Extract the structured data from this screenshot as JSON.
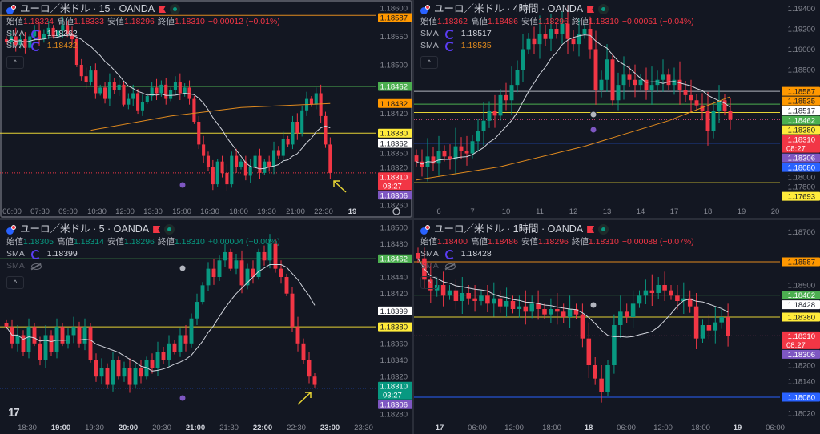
{
  "colors": {
    "up": "#089981",
    "down": "#f23645",
    "background": "#131722",
    "sma_fast": "#d1d4dc",
    "sma_slow": "#e08a1e"
  },
  "panels": [
    {
      "title": "ユーロ／米ドル · 15 · OANDA",
      "ohlc": {
        "o_label": "始値",
        "o": "1.18324",
        "h_label": "高値",
        "h": "1.18333",
        "l_label": "安値",
        "l": "1.18296",
        "c_label": "終値",
        "c": "1.18310",
        "change": "−0.00012 (−0.01%)",
        "tone": "down"
      },
      "sma": [
        {
          "label": "SMA",
          "value": "1.18362",
          "color": "#d1d4dc",
          "visible": true
        },
        {
          "label": "SMA",
          "value": "1.18432",
          "color": "#e08a1e",
          "visible": true
        }
      ],
      "price_axis": [
        "1.18600",
        "1.18550",
        "1.18500",
        "1.18420",
        "1.18350",
        "1.18320",
        "1.18260"
      ],
      "time_axis": [
        {
          "t": "06:00"
        },
        {
          "t": "07:30"
        },
        {
          "t": "09:00"
        },
        {
          "t": "10:30"
        },
        {
          "t": "12:00"
        },
        {
          "t": "13:30"
        },
        {
          "t": "15:00"
        },
        {
          "t": "16:30"
        },
        {
          "t": "18:00"
        },
        {
          "t": "19:30"
        },
        {
          "t": "21:00"
        },
        {
          "t": "22:30"
        },
        {
          "t": "19",
          "bold": true
        }
      ],
      "levels": [
        {
          "price": 1.18587,
          "color": "#e08a1e",
          "style": "solid"
        },
        {
          "price": 1.18462,
          "color": "#4caf50",
          "style": "solid"
        },
        {
          "price": 1.1838,
          "color": "#e6d335",
          "style": "solid"
        },
        {
          "price": 1.1831,
          "color": "#f23645",
          "style": "dotted"
        }
      ],
      "tags": [
        {
          "text": "1.18587",
          "bg": "#ff9800",
          "fg": "#131722"
        },
        {
          "text": "1.18462",
          "bg": "#4caf50",
          "fg": "#ffffff"
        },
        {
          "text": "1.18432",
          "bg": "#ff9800",
          "fg": "#131722"
        },
        {
          "text": "1.18380",
          "bg": "#ffeb3b",
          "fg": "#131722"
        },
        {
          "text": "1.18362",
          "bg": "#ffffff",
          "fg": "#131722"
        },
        {
          "text": "1.18310",
          "timer": "08:27",
          "bg": "#f23645",
          "fg": "#ffffff"
        },
        {
          "text": "1.18306",
          "bg": "#7e57c2",
          "fg": "#ffffff"
        }
      ],
      "closes": [
        1.1854,
        1.1855,
        1.18535,
        1.18545,
        1.1853,
        1.1855,
        1.1856,
        1.18545,
        1.18555,
        1.18565,
        1.1855,
        1.1856,
        1.1857,
        1.18555,
        1.18545,
        1.185,
        1.1848,
        1.1847,
        1.1849,
        1.1845,
        1.1846,
        1.1844,
        1.1847,
        1.18455,
        1.18465,
        1.1843,
        1.1844,
        1.1845,
        1.1842,
        1.18435,
        1.18445,
        1.1846,
        1.1845,
        1.18465,
        1.1844,
        1.18455,
        1.1847,
        1.1845,
        1.1846,
        1.1844,
        1.184,
        1.1836,
        1.1834,
        1.1832,
        1.1829,
        1.1833,
        1.1831,
        1.1829,
        1.1834,
        1.1832,
        1.1833,
        1.18305,
        1.1832,
        1.1834,
        1.1831,
        1.1833,
        1.1832,
        1.1835,
        1.1834,
        1.1837,
        1.1836,
        1.184,
        1.1838,
        1.1842,
        1.1844,
        1.1843,
        1.1845,
        1.1841,
        1.1836,
        1.1831
      ],
      "slow_sma_points": [
        [
          18,
          1.18385
        ],
        [
          35,
          1.1841
        ],
        [
          50,
          1.18425
        ],
        [
          69,
          1.18432
        ]
      ],
      "active": true
    },
    {
      "title": "ユーロ／米ドル · 4時間 · OANDA",
      "ohlc": {
        "o_label": "始値",
        "o": "1.18362",
        "h_label": "高値",
        "h": "1.18486",
        "l_label": "安値",
        "l": "1.18296",
        "c_label": "終値",
        "c": "1.18310",
        "change": "−0.00051 (−0.04%)",
        "tone": "down"
      },
      "sma": [
        {
          "label": "SMA",
          "value": "1.18517",
          "color": "#d1d4dc",
          "visible": true
        },
        {
          "label": "SMA",
          "value": "1.18535",
          "color": "#e08a1e",
          "visible": true
        }
      ],
      "price_axis": [
        "1.19400",
        "1.19200",
        "1.19000",
        "1.18800",
        "1.18000",
        "1.17800"
      ],
      "time_axis": [
        {
          "t": "6"
        },
        {
          "t": "7"
        },
        {
          "t": "10"
        },
        {
          "t": "11"
        },
        {
          "t": "12"
        },
        {
          "t": "13"
        },
        {
          "t": "14"
        },
        {
          "t": "17"
        },
        {
          "t": "18"
        },
        {
          "t": "19"
        },
        {
          "t": "20"
        }
      ],
      "levels": [
        {
          "price": 1.18587,
          "color": "#b2b5be",
          "style": "solid"
        },
        {
          "price": 1.18462,
          "color": "#4caf50",
          "style": "solid"
        },
        {
          "price": 1.1838,
          "color": "#e6d335",
          "style": "solid"
        },
        {
          "price": 1.1831,
          "color": "#c04070",
          "style": "dotted"
        },
        {
          "price": 1.1808,
          "color": "#2962ff",
          "style": "solid"
        },
        {
          "price": 1.17693,
          "color": "#e6d335",
          "style": "solid"
        }
      ],
      "tags": [
        {
          "text": "1.18587",
          "bg": "#ff9800",
          "fg": "#131722"
        },
        {
          "text": "1.18535",
          "bg": "#ff9800",
          "fg": "#131722"
        },
        {
          "text": "1.18517",
          "bg": "#ffffff",
          "fg": "#131722"
        },
        {
          "text": "1.18462",
          "bg": "#4caf50",
          "fg": "#ffffff"
        },
        {
          "text": "1.18380",
          "bg": "#ffeb3b",
          "fg": "#131722"
        },
        {
          "text": "1.18310",
          "timer": "08:27",
          "bg": "#f23645",
          "fg": "#ffffff"
        },
        {
          "text": "1.18306",
          "bg": "#7e57c2",
          "fg": "#ffffff"
        },
        {
          "text": "1.18080",
          "bg": "#2962ff",
          "fg": "#ffffff"
        },
        {
          "text": "1.17693",
          "bg": "#ffeb3b",
          "fg": "#131722"
        }
      ],
      "closes": [
        1.179,
        1.1785,
        1.1795,
        1.1788,
        1.18,
        1.1795,
        1.1792,
        1.1805,
        1.18,
        1.1798,
        1.181,
        1.182,
        1.183,
        1.184,
        1.1835,
        1.1855,
        1.185,
        1.1865,
        1.188,
        1.19,
        1.191,
        1.1905,
        1.1915,
        1.191,
        1.192,
        1.1915,
        1.1925,
        1.191,
        1.1905,
        1.1915,
        1.192,
        1.19,
        1.186,
        1.187,
        1.189,
        1.185,
        1.1865,
        1.1875,
        1.187,
        1.1865,
        1.187,
        1.186,
        1.1865,
        1.187,
        1.1875,
        1.1865,
        1.187,
        1.186,
        1.1855,
        1.185,
        1.1845,
        1.184,
        1.182,
        1.184,
        1.185,
        1.184,
        1.1831
      ],
      "slow_sma_points": [
        [
          0,
          1.1772
        ],
        [
          15,
          1.1785
        ],
        [
          30,
          1.1805
        ],
        [
          45,
          1.183
        ],
        [
          56,
          1.18535
        ]
      ],
      "active": false
    },
    {
      "title": "ユーロ／米ドル · 5 · OANDA",
      "ohlc": {
        "o_label": "始値",
        "o": "1.18305",
        "h_label": "高値",
        "h": "1.18314",
        "l_label": "安値",
        "l": "1.18296",
        "c_label": "終値",
        "c": "1.18310",
        "change": "+0.00004 (+0.00%)",
        "tone": "up"
      },
      "sma": [
        {
          "label": "SMA",
          "value": "1.18399",
          "color": "#d1d4dc",
          "visible": true
        },
        {
          "label": "SMA",
          "value": "",
          "color": "#50535e",
          "visible": false
        }
      ],
      "price_axis": [
        "1.18500",
        "1.18480",
        "1.18440",
        "1.18420",
        "1.18360",
        "1.18340",
        "1.18320",
        "1.18280"
      ],
      "time_axis": [
        {
          "t": "18:30"
        },
        {
          "t": "19:00",
          "bold": true
        },
        {
          "t": "19:30"
        },
        {
          "t": "20:00",
          "bold": true
        },
        {
          "t": "20:30"
        },
        {
          "t": "21:00",
          "bold": true
        },
        {
          "t": "21:30"
        },
        {
          "t": "22:00",
          "bold": true
        },
        {
          "t": "22:30"
        },
        {
          "t": "23:00",
          "bold": true
        },
        {
          "t": "23:30"
        }
      ],
      "levels": [
        {
          "price": 1.18462,
          "color": "#4caf50",
          "style": "solid"
        },
        {
          "price": 1.1838,
          "color": "#e6d335",
          "style": "solid"
        },
        {
          "price": 1.18306,
          "color": "#2962ff",
          "style": "dotted"
        }
      ],
      "tags": [
        {
          "text": "1.18462",
          "bg": "#4caf50",
          "fg": "#ffffff"
        },
        {
          "text": "1.18399",
          "bg": "#ffffff",
          "fg": "#131722"
        },
        {
          "text": "1.18380",
          "bg": "#ffeb3b",
          "fg": "#131722"
        },
        {
          "text": "1.18310",
          "timer": "03:27",
          "bg": "#089981",
          "fg": "#ffffff"
        },
        {
          "text": "1.18306",
          "bg": "#7e57c2",
          "fg": "#ffffff"
        }
      ],
      "closes": [
        1.1838,
        1.1836,
        1.1837,
        1.1835,
        1.1838,
        1.1836,
        1.1834,
        1.1837,
        1.1835,
        1.1838,
        1.1836,
        1.1837,
        1.1838,
        1.1836,
        1.1838,
        1.1834,
        1.1832,
        1.1833,
        1.1831,
        1.1834,
        1.1832,
        1.1833,
        1.1831,
        1.1833,
        1.1832,
        1.1834,
        1.1833,
        1.1835,
        1.1834,
        1.1836,
        1.1835,
        1.1837,
        1.1836,
        1.1839,
        1.1841,
        1.1843,
        1.1845,
        1.1844,
        1.1846,
        1.1847,
        1.1845,
        1.1846,
        1.1843,
        1.1845,
        1.1844,
        1.1847,
        1.1846,
        1.1848,
        1.1845,
        1.1844,
        1.1842,
        1.1838,
        1.1836,
        1.1834,
        1.1832,
        1.1831
      ],
      "slow_sma_points": [],
      "active": false
    },
    {
      "title": "ユーロ／米ドル · 1時間 · OANDA",
      "ohlc": {
        "o_label": "始値",
        "o": "1.18400",
        "h_label": "高値",
        "h": "1.18486",
        "l_label": "安値",
        "l": "1.18296",
        "c_label": "終値",
        "c": "1.18310",
        "change": "−0.00088 (−0.07%)",
        "tone": "down"
      },
      "sma": [
        {
          "label": "SMA",
          "value": "1.18428",
          "color": "#d1d4dc",
          "visible": true
        },
        {
          "label": "SMA",
          "value": "",
          "color": "#50535e",
          "visible": false
        }
      ],
      "price_axis": [
        "1.18700",
        "1.18500",
        "1.18200",
        "1.18140",
        "1.18020"
      ],
      "time_axis": [
        {
          "t": "17",
          "bold": true
        },
        {
          "t": "06:00"
        },
        {
          "t": "12:00"
        },
        {
          "t": "18:00"
        },
        {
          "t": "18",
          "bold": true
        },
        {
          "t": "06:00"
        },
        {
          "t": "12:00"
        },
        {
          "t": "18:00"
        },
        {
          "t": "19",
          "bold": true
        },
        {
          "t": "06:00"
        }
      ],
      "levels": [
        {
          "price": 1.18587,
          "color": "#e08a1e",
          "style": "solid"
        },
        {
          "price": 1.18462,
          "color": "#4caf50",
          "style": "solid"
        },
        {
          "price": 1.1838,
          "color": "#e6d335",
          "style": "solid"
        },
        {
          "price": 1.1831,
          "color": "#c04070",
          "style": "dotted"
        },
        {
          "price": 1.1808,
          "color": "#2962ff",
          "style": "solid"
        }
      ],
      "tags": [
        {
          "text": "1.18587",
          "bg": "#ff9800",
          "fg": "#131722"
        },
        {
          "text": "1.18462",
          "bg": "#4caf50",
          "fg": "#ffffff"
        },
        {
          "text": "1.18428",
          "bg": "#ffffff",
          "fg": "#131722"
        },
        {
          "text": "1.18380",
          "bg": "#ffeb3b",
          "fg": "#131722"
        },
        {
          "text": "1.18310",
          "timer": "08:27",
          "bg": "#f23645",
          "fg": "#ffffff"
        },
        {
          "text": "1.18306",
          "bg": "#7e57c2",
          "fg": "#ffffff"
        },
        {
          "text": "1.18080",
          "bg": "#2962ff",
          "fg": "#ffffff"
        }
      ],
      "closes": [
        1.186,
        1.1852,
        1.1848,
        1.185,
        1.1846,
        1.1848,
        1.1844,
        1.1847,
        1.1845,
        1.1844,
        1.1846,
        1.1843,
        1.1845,
        1.1842,
        1.1844,
        1.1841,
        1.1842,
        1.184,
        1.1843,
        1.1841,
        1.1839,
        1.1841,
        1.184,
        1.1838,
        1.1841,
        1.1839,
        1.183,
        1.182,
        1.1815,
        1.181,
        1.182,
        1.1835,
        1.184,
        1.1838,
        1.1843,
        1.1846,
        1.1848,
        1.1847,
        1.185,
        1.1848,
        1.1846,
        1.1844,
        1.1845,
        1.1842,
        1.183,
        1.1835,
        1.1833,
        1.1836,
        1.1838,
        1.1831
      ],
      "slow_sma_points": [],
      "active": false
    }
  ],
  "collapse_label": "^",
  "logo_text": "17"
}
